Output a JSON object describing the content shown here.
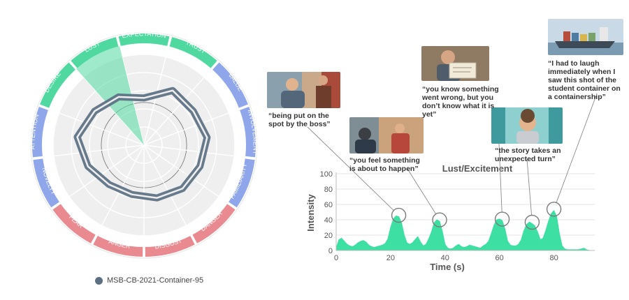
{
  "chart_data": [
    {
      "type": "radar",
      "categories": [
        "EXPECTATION",
        "TRUST",
        "VALUE",
        "INVOLVEMENT",
        "FAMILIARITY",
        "DANGER",
        "DISGUST",
        "ANGER",
        "FEAR",
        "NOVELTY",
        "ATTENTION",
        "DESIRE",
        "LUST"
      ],
      "category_colors": [
        "#4fd9a0",
        "#4fd9a0",
        "#8fa6ea",
        "#8fa6ea",
        "#8fa6ea",
        "#e98a90",
        "#e98a90",
        "#e98a90",
        "#e98a90",
        "#8fa6ea",
        "#8fa6ea",
        "#4fd9a0",
        "#4fd9a0"
      ],
      "highlight_category": "LUST",
      "highlight_value": 1.0,
      "series": [
        {
          "name": "MSB-CB-2021-Container-95",
          "color": "#5b7083",
          "values": [
            0.52,
            0.68,
            0.66,
            0.7,
            0.66,
            0.64,
            0.6,
            0.56,
            0.58,
            0.66,
            0.74,
            0.66,
            0.6
          ]
        }
      ],
      "rlim": [
        0,
        1
      ]
    },
    {
      "type": "area",
      "title": "Lust/Excitement",
      "xlabel": "Time (s)",
      "ylabel": "Intensity",
      "xlim": [
        0,
        95
      ],
      "ylim": [
        0,
        100
      ],
      "xticks": [
        0,
        20,
        40,
        60,
        80
      ],
      "yticks": [
        0,
        20,
        40,
        60,
        80,
        100
      ],
      "color": "#3ddfa3",
      "x": [
        0,
        1,
        2,
        3,
        4,
        5,
        6,
        7,
        8,
        9,
        10,
        11,
        12,
        13,
        14,
        15,
        16,
        17,
        18,
        19,
        20,
        21,
        22,
        23,
        24,
        25,
        26,
        27,
        28,
        29,
        30,
        31,
        32,
        33,
        34,
        35,
        36,
        37,
        38,
        39,
        40,
        41,
        42,
        43,
        44,
        45,
        46,
        47,
        48,
        49,
        50,
        51,
        52,
        53,
        54,
        55,
        56,
        57,
        58,
        59,
        60,
        61,
        62,
        63,
        64,
        65,
        66,
        67,
        68,
        69,
        70,
        71,
        72,
        73,
        74,
        75,
        76,
        77,
        78,
        79,
        80,
        81,
        82,
        83,
        84,
        85,
        86,
        87,
        88,
        89,
        90,
        91,
        92,
        93
      ],
      "values": [
        3,
        14,
        16,
        12,
        8,
        6,
        5,
        7,
        10,
        12,
        13,
        11,
        7,
        5,
        4,
        5,
        6,
        7,
        9,
        15,
        30,
        41,
        45,
        44,
        36,
        20,
        10,
        8,
        10,
        14,
        18,
        11,
        6,
        8,
        15,
        24,
        36,
        40,
        38,
        25,
        8,
        3,
        2,
        3,
        6,
        8,
        5,
        4,
        5,
        7,
        6,
        5,
        4,
        3,
        6,
        8,
        12,
        22,
        33,
        40,
        41,
        39,
        28,
        12,
        7,
        6,
        6,
        8,
        14,
        26,
        34,
        37,
        35,
        32,
        24,
        14,
        16,
        26,
        38,
        48,
        52,
        44,
        22,
        6,
        2,
        1,
        1,
        1,
        1,
        1,
        2,
        3,
        1,
        0
      ],
      "annotations": [
        {
          "x": 23,
          "text": "“being put on the spot by the boss”"
        },
        {
          "x": 38,
          "text": "“you feel something is about to happen”"
        },
        {
          "x": 61,
          "text": "“you know something went wrong, but you don’t know what it is yet”"
        },
        {
          "x": 72,
          "text": "“the story takes an unexpected turn”"
        },
        {
          "x": 80,
          "text": "“I had to laugh immediately when I saw this shot of the student container on a containership”"
        }
      ]
    }
  ],
  "legend": {
    "label": "MSB-CB-2021-Container-95"
  }
}
